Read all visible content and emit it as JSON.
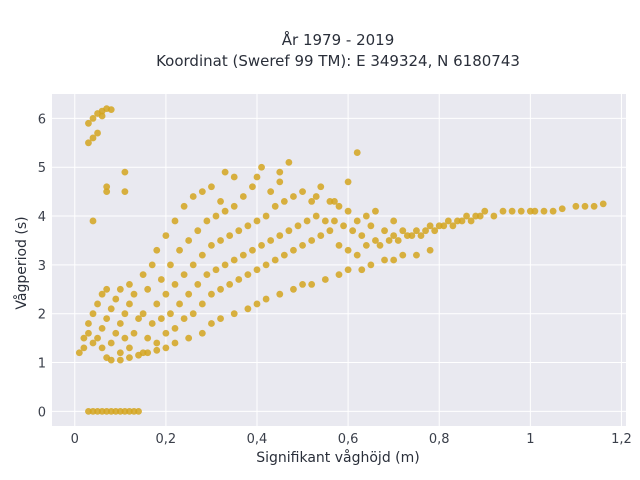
{
  "chart_data": {
    "type": "scatter",
    "title": "År 1979 - 2019",
    "subtitle": "Koordinat (Sweref 99 TM): E 349324, N 6180743",
    "xlabel": "Signifikant våghöjd (m)",
    "ylabel": "Vågperiod (s)",
    "xlim": [
      -0.05,
      1.21
    ],
    "ylim": [
      -0.3,
      6.5
    ],
    "xticks": [
      0,
      0.2,
      0.4,
      0.6,
      0.8,
      1,
      1.2
    ],
    "xtick_labels": [
      "0",
      "0,2",
      "0,4",
      "0,6",
      "0,8",
      "1",
      "1,2"
    ],
    "yticks": [
      0,
      1,
      2,
      3,
      4,
      5,
      6
    ],
    "ytick_labels": [
      "0",
      "1",
      "2",
      "3",
      "4",
      "5",
      "6"
    ],
    "grid": true,
    "plot_bg": "#e9e9f0",
    "marker_color": "#d4a51f",
    "series": [
      {
        "points": [
          [
            0.03,
            5.5
          ],
          [
            0.04,
            5.6
          ],
          [
            0.05,
            5.7
          ],
          [
            0.03,
            5.9
          ],
          [
            0.04,
            6.0
          ],
          [
            0.05,
            6.1
          ],
          [
            0.06,
            6.15
          ],
          [
            0.07,
            6.2
          ],
          [
            0.08,
            6.18
          ],
          [
            0.06,
            6.05
          ],
          [
            0.07,
            4.5
          ],
          [
            0.07,
            4.6
          ],
          [
            0.11,
            4.5
          ],
          [
            0.11,
            4.9
          ],
          [
            0.04,
            3.9
          ],
          [
            0.03,
            0
          ],
          [
            0.04,
            0
          ],
          [
            0.05,
            0
          ],
          [
            0.06,
            0
          ],
          [
            0.07,
            0
          ],
          [
            0.08,
            0
          ],
          [
            0.09,
            0
          ],
          [
            0.1,
            0
          ],
          [
            0.11,
            0
          ],
          [
            0.12,
            0
          ],
          [
            0.13,
            0
          ],
          [
            0.14,
            0
          ],
          [
            0.01,
            1.2
          ],
          [
            0.02,
            1.5
          ],
          [
            0.02,
            1.3
          ],
          [
            0.03,
            1.6
          ],
          [
            0.03,
            1.8
          ],
          [
            0.04,
            1.4
          ],
          [
            0.04,
            2.0
          ],
          [
            0.05,
            1.5
          ],
          [
            0.05,
            2.2
          ],
          [
            0.06,
            1.3
          ],
          [
            0.06,
            1.7
          ],
          [
            0.06,
            2.4
          ],
          [
            0.07,
            1.1
          ],
          [
            0.07,
            1.9
          ],
          [
            0.07,
            2.5
          ],
          [
            0.08,
            1.4
          ],
          [
            0.08,
            2.1
          ],
          [
            0.09,
            1.6
          ],
          [
            0.09,
            2.3
          ],
          [
            0.1,
            1.2
          ],
          [
            0.1,
            1.8
          ],
          [
            0.1,
            2.5
          ],
          [
            0.11,
            1.5
          ],
          [
            0.11,
            2.0
          ],
          [
            0.12,
            1.3
          ],
          [
            0.12,
            2.2
          ],
          [
            0.12,
            2.6
          ],
          [
            0.13,
            1.6
          ],
          [
            0.13,
            2.4
          ],
          [
            0.14,
            1.9
          ],
          [
            0.15,
            1.2
          ],
          [
            0.15,
            2.0
          ],
          [
            0.15,
            2.8
          ],
          [
            0.16,
            1.5
          ],
          [
            0.16,
            2.5
          ],
          [
            0.17,
            1.8
          ],
          [
            0.17,
            3.0
          ],
          [
            0.18,
            1.4
          ],
          [
            0.18,
            2.2
          ],
          [
            0.18,
            3.3
          ],
          [
            0.19,
            1.9
          ],
          [
            0.19,
            2.7
          ],
          [
            0.2,
            1.6
          ],
          [
            0.2,
            2.4
          ],
          [
            0.2,
            3.6
          ],
          [
            0.21,
            2.0
          ],
          [
            0.21,
            3.0
          ],
          [
            0.22,
            1.7
          ],
          [
            0.22,
            2.6
          ],
          [
            0.22,
            3.9
          ],
          [
            0.23,
            2.2
          ],
          [
            0.23,
            3.3
          ],
          [
            0.24,
            1.9
          ],
          [
            0.24,
            2.8
          ],
          [
            0.24,
            4.2
          ],
          [
            0.25,
            2.4
          ],
          [
            0.25,
            3.5
          ],
          [
            0.26,
            2.0
          ],
          [
            0.26,
            3.0
          ],
          [
            0.26,
            4.4
          ],
          [
            0.27,
            2.6
          ],
          [
            0.27,
            3.7
          ],
          [
            0.28,
            2.2
          ],
          [
            0.28,
            3.2
          ],
          [
            0.28,
            4.5
          ],
          [
            0.29,
            2.8
          ],
          [
            0.29,
            3.9
          ],
          [
            0.3,
            2.4
          ],
          [
            0.3,
            3.4
          ],
          [
            0.3,
            4.6
          ],
          [
            0.31,
            2.9
          ],
          [
            0.31,
            4.0
          ],
          [
            0.32,
            2.5
          ],
          [
            0.32,
            3.5
          ],
          [
            0.32,
            4.3
          ],
          [
            0.33,
            3.0
          ],
          [
            0.33,
            4.1
          ],
          [
            0.34,
            2.6
          ],
          [
            0.34,
            3.6
          ],
          [
            0.35,
            3.1
          ],
          [
            0.35,
            4.2
          ],
          [
            0.36,
            2.7
          ],
          [
            0.36,
            3.7
          ],
          [
            0.37,
            3.2
          ],
          [
            0.37,
            4.4
          ],
          [
            0.38,
            2.8
          ],
          [
            0.38,
            3.8
          ],
          [
            0.39,
            3.3
          ],
          [
            0.39,
            4.6
          ],
          [
            0.4,
            2.9
          ],
          [
            0.4,
            3.9
          ],
          [
            0.4,
            4.8
          ],
          [
            0.41,
            3.4
          ],
          [
            0.41,
            5.0
          ],
          [
            0.42,
            3.0
          ],
          [
            0.42,
            4.0
          ],
          [
            0.43,
            3.5
          ],
          [
            0.43,
            4.5
          ],
          [
            0.44,
            3.1
          ],
          [
            0.44,
            4.2
          ],
          [
            0.45,
            3.6
          ],
          [
            0.45,
            4.7
          ],
          [
            0.46,
            3.2
          ],
          [
            0.46,
            4.3
          ],
          [
            0.47,
            3.7
          ],
          [
            0.47,
            5.1
          ],
          [
            0.48,
            3.3
          ],
          [
            0.48,
            4.4
          ],
          [
            0.49,
            3.8
          ],
          [
            0.5,
            3.4
          ],
          [
            0.5,
            4.5
          ],
          [
            0.51,
            3.9
          ],
          [
            0.52,
            3.5
          ],
          [
            0.52,
            4.3
          ],
          [
            0.53,
            4.0
          ],
          [
            0.54,
            3.6
          ],
          [
            0.54,
            4.6
          ],
          [
            0.55,
            3.9
          ],
          [
            0.56,
            3.7
          ],
          [
            0.56,
            4.3
          ],
          [
            0.57,
            3.9
          ],
          [
            0.58,
            3.4
          ],
          [
            0.58,
            4.2
          ],
          [
            0.59,
            3.8
          ],
          [
            0.6,
            3.3
          ],
          [
            0.6,
            4.1
          ],
          [
            0.61,
            3.7
          ],
          [
            0.62,
            3.2
          ],
          [
            0.62,
            3.9
          ],
          [
            0.63,
            3.6
          ],
          [
            0.64,
            3.4
          ],
          [
            0.65,
            3.8
          ],
          [
            0.66,
            3.5
          ],
          [
            0.67,
            3.4
          ],
          [
            0.68,
            3.7
          ],
          [
            0.69,
            3.5
          ],
          [
            0.7,
            3.6
          ],
          [
            0.71,
            3.5
          ],
          [
            0.72,
            3.7
          ],
          [
            0.73,
            3.6
          ],
          [
            0.74,
            3.6
          ],
          [
            0.75,
            3.7
          ],
          [
            0.76,
            3.6
          ],
          [
            0.77,
            3.7
          ],
          [
            0.78,
            3.8
          ],
          [
            0.79,
            3.7
          ],
          [
            0.8,
            3.8
          ],
          [
            0.81,
            3.8
          ],
          [
            0.82,
            3.9
          ],
          [
            0.83,
            3.8
          ],
          [
            0.84,
            3.9
          ],
          [
            0.85,
            3.9
          ],
          [
            0.86,
            4.0
          ],
          [
            0.87,
            3.9
          ],
          [
            0.88,
            4.0
          ],
          [
            0.89,
            4.0
          ],
          [
            0.9,
            4.1
          ],
          [
            0.92,
            4.0
          ],
          [
            0.94,
            4.1
          ],
          [
            0.96,
            4.1
          ],
          [
            0.98,
            4.1
          ],
          [
            1.0,
            4.1
          ],
          [
            1.01,
            4.1
          ],
          [
            1.03,
            4.1
          ],
          [
            1.05,
            4.1
          ],
          [
            1.07,
            4.15
          ],
          [
            1.1,
            4.2
          ],
          [
            1.12,
            4.2
          ],
          [
            1.14,
            4.2
          ],
          [
            1.16,
            4.25
          ],
          [
            0.3,
            1.8
          ],
          [
            0.32,
            1.9
          ],
          [
            0.35,
            2.0
          ],
          [
            0.38,
            2.1
          ],
          [
            0.4,
            2.2
          ],
          [
            0.42,
            2.3
          ],
          [
            0.45,
            2.4
          ],
          [
            0.48,
            2.5
          ],
          [
            0.5,
            2.6
          ],
          [
            0.52,
            2.6
          ],
          [
            0.55,
            2.7
          ],
          [
            0.58,
            2.8
          ],
          [
            0.6,
            2.9
          ],
          [
            0.63,
            2.9
          ],
          [
            0.65,
            3.0
          ],
          [
            0.68,
            3.1
          ],
          [
            0.7,
            3.1
          ],
          [
            0.72,
            3.2
          ],
          [
            0.75,
            3.2
          ],
          [
            0.78,
            3.3
          ],
          [
            0.25,
            1.5
          ],
          [
            0.28,
            1.6
          ],
          [
            0.22,
            1.4
          ],
          [
            0.2,
            1.3
          ],
          [
            0.18,
            1.25
          ],
          [
            0.16,
            1.2
          ],
          [
            0.14,
            1.15
          ],
          [
            0.12,
            1.1
          ],
          [
            0.1,
            1.05
          ],
          [
            0.08,
            1.05
          ],
          [
            0.62,
            5.3
          ],
          [
            0.6,
            4.7
          ],
          [
            0.45,
            4.9
          ],
          [
            0.35,
            4.8
          ],
          [
            0.33,
            4.9
          ],
          [
            0.53,
            4.4
          ],
          [
            0.57,
            4.3
          ],
          [
            0.66,
            4.1
          ],
          [
            0.64,
            4.0
          ],
          [
            0.7,
            3.9
          ]
        ]
      }
    ]
  }
}
